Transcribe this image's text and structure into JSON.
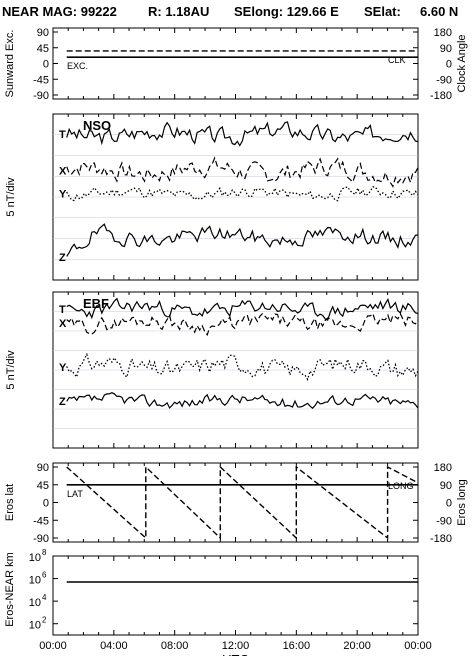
{
  "header": {
    "mission": "NEAR MAG: 99222",
    "range": "R: 1.18AU",
    "selong": "SElong: 129.66 E",
    "selat_label": "SElat:",
    "selat_value": "6.60 N"
  },
  "x_axis": {
    "label": "UTC",
    "ticks": [
      "00:00",
      "04:00",
      "08:00",
      "12:00",
      "16:00",
      "20:00",
      "00:00"
    ]
  },
  "chart_data": [
    {
      "type": "line",
      "id": "angles",
      "ylabel_left": "Sunward Exc.",
      "ylabel_right": "Clock Angle",
      "left_ticks": [
        "90",
        "45",
        "0",
        "-45",
        "-90"
      ],
      "right_ticks": [
        "180",
        "90",
        "0",
        "-90",
        "-180"
      ],
      "ylim_left": [
        -90,
        90
      ],
      "ylim_right": [
        -180,
        180
      ],
      "series": [
        {
          "name": "EXC.",
          "axis": "left",
          "style": "solid",
          "x": [
            0.9,
            24
          ],
          "y": [
            18,
            18
          ]
        },
        {
          "name": "CLK",
          "axis": "right",
          "style": "dashed",
          "x": [
            0.9,
            24
          ],
          "y": [
            72,
            72
          ]
        }
      ]
    },
    {
      "type": "line",
      "id": "nso",
      "panel_label": "NSO",
      "ylabel": "5 nT/div",
      "series": [
        {
          "name": "T",
          "style": "solid",
          "level": 0.88,
          "amp": 0.045,
          "seed": 3
        },
        {
          "name": "X",
          "style": "dashed",
          "level": 0.66,
          "amp": 0.05,
          "seed": 7
        },
        {
          "name": "Y",
          "style": "dotted",
          "level": 0.52,
          "amp": 0.03,
          "seed": 11
        },
        {
          "name": "Z",
          "style": "solid",
          "level": 0.26,
          "amp": 0.04,
          "seed": 19
        }
      ]
    },
    {
      "type": "line",
      "id": "ebf",
      "panel_label": "EBF",
      "ylabel": "5 nT/div",
      "series": [
        {
          "name": "T",
          "style": "solid",
          "level": 0.89,
          "amp": 0.04,
          "seed": 23
        },
        {
          "name": "X",
          "style": "dashed",
          "level": 0.8,
          "amp": 0.04,
          "seed": 29
        },
        {
          "name": "Y",
          "style": "dotted",
          "level": 0.52,
          "amp": 0.05,
          "seed": 31
        },
        {
          "name": "Z",
          "style": "solid",
          "level": 0.3,
          "amp": 0.03,
          "seed": 37
        }
      ]
    },
    {
      "type": "line",
      "id": "eros",
      "ylabel_left": "Eros lat",
      "ylabel_right": "Eros long",
      "left_ticks": [
        "90",
        "45",
        "0",
        "-45",
        "-90"
      ],
      "right_ticks": [
        "180",
        "90",
        "0",
        "-90",
        "-180"
      ],
      "ylim_left": [
        -90,
        90
      ],
      "ylim_right": [
        -180,
        180
      ],
      "series": [
        {
          "name": "LAT",
          "axis": "left",
          "style": "solid",
          "x": [
            0.9,
            24
          ],
          "y": [
            45,
            45
          ]
        },
        {
          "name": "LONG",
          "axis": "right",
          "style": "dashed",
          "x": [
            0.9,
            6.1,
            6.1,
            11,
            11,
            16,
            16,
            22,
            22,
            24
          ],
          "y": [
            180,
            -180,
            180,
            -180,
            180,
            -180,
            180,
            -180,
            180,
            100
          ]
        }
      ]
    },
    {
      "type": "line",
      "id": "distance",
      "ylabel": "Eros-NEAR km",
      "y_scale": "log",
      "ylim": [
        10,
        100000000
      ],
      "ticks": [
        {
          "base": "10",
          "exp": "8"
        },
        {
          "base": "10",
          "exp": "6"
        },
        {
          "base": "10",
          "exp": "4"
        },
        {
          "base": "10",
          "exp": "2"
        }
      ],
      "series": [
        {
          "name": "",
          "style": "solid",
          "x": [
            0.9,
            24
          ],
          "y": [
            500000,
            500000
          ]
        }
      ]
    }
  ]
}
